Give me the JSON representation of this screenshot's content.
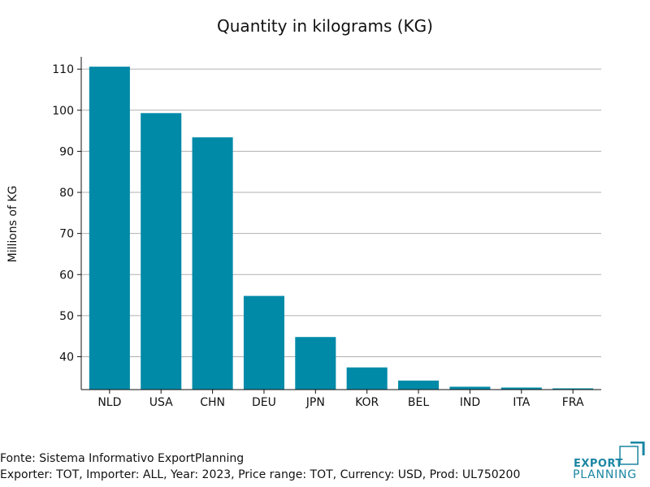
{
  "chart_data": {
    "type": "bar",
    "title": "Quantity in kilograms (KG)",
    "xlabel": "",
    "ylabel": "Millions of KG",
    "categories": [
      "NLD",
      "USA",
      "CHN",
      "DEU",
      "JPN",
      "KOR",
      "BEL",
      "IND",
      "ITA",
      "FRA"
    ],
    "values": [
      110.6,
      99.3,
      93.4,
      54.8,
      44.8,
      37.4,
      34.2,
      32.7,
      32.5,
      32.3
    ],
    "ylim": [
      32,
      113
    ],
    "yticks": [
      40,
      50,
      60,
      70,
      80,
      90,
      100,
      110
    ],
    "grid": true,
    "bar_color": "#008aa8",
    "grid_color": "#b0b0b0"
  },
  "footer": {
    "source": "Fonte: Sistema Informativo ExportPlanning",
    "filters": "Exporter: TOT, Importer: ALL, Year: 2023, Price range: TOT, Currency: USD, Prod: UL750200"
  },
  "logo": {
    "line1": "EXPORT",
    "line2": "PLANNING",
    "color": "#1b86a3"
  }
}
